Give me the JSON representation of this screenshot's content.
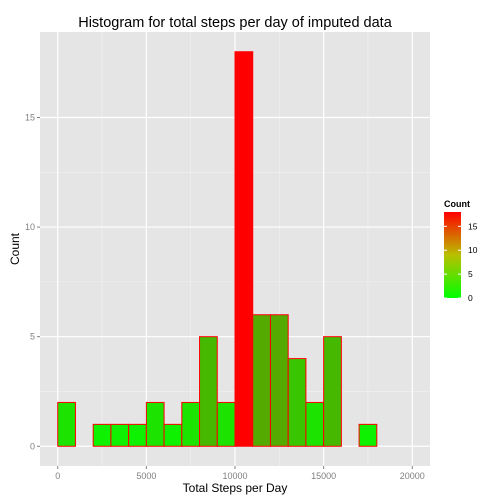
{
  "chart_data": {
    "type": "bar",
    "title": "Histogram for total steps per day of imputed data",
    "xlabel": "Total Steps per Day",
    "ylabel": "Count",
    "xlim": [
      -1000,
      21000
    ],
    "ylim": [
      -0.9,
      18.9
    ],
    "xticks": [
      "0",
      "5000",
      "10000",
      "15000",
      "20000"
    ],
    "yticks": [
      "0",
      "5",
      "10",
      "15"
    ],
    "bin_width": 1000,
    "bins": [
      {
        "x0": 0,
        "x1": 1000,
        "count": 2
      },
      {
        "x0": 1000,
        "x1": 2000,
        "count": 0
      },
      {
        "x0": 2000,
        "x1": 3000,
        "count": 1
      },
      {
        "x0": 3000,
        "x1": 4000,
        "count": 1
      },
      {
        "x0": 4000,
        "x1": 5000,
        "count": 1
      },
      {
        "x0": 5000,
        "x1": 6000,
        "count": 2
      },
      {
        "x0": 6000,
        "x1": 7000,
        "count": 1
      },
      {
        "x0": 7000,
        "x1": 8000,
        "count": 2
      },
      {
        "x0": 8000,
        "x1": 9000,
        "count": 5
      },
      {
        "x0": 9000,
        "x1": 10000,
        "count": 2
      },
      {
        "x0": 10000,
        "x1": 11000,
        "count": 18
      },
      {
        "x0": 11000,
        "x1": 12000,
        "count": 6
      },
      {
        "x0": 12000,
        "x1": 13000,
        "count": 6
      },
      {
        "x0": 13000,
        "x1": 14000,
        "count": 4
      },
      {
        "x0": 14000,
        "x1": 15000,
        "count": 2
      },
      {
        "x0": 15000,
        "x1": 16000,
        "count": 5
      },
      {
        "x0": 16000,
        "x1": 17000,
        "count": 0
      },
      {
        "x0": 17000,
        "x1": 18000,
        "count": 1
      },
      {
        "x0": 18000,
        "x1": 19000,
        "count": 0
      },
      {
        "x0": 19000,
        "x1": 20000,
        "count": 0
      }
    ],
    "fill_scale": {
      "low": "#00ff00",
      "high": "#ff0000",
      "domain": [
        0,
        18
      ]
    },
    "bar_outline_color": "#ff0000",
    "panel_background": "#e5e5e5",
    "grid": true,
    "legend": {
      "title": "Count",
      "position": "right",
      "labels": [
        "15",
        "10",
        "5",
        "0"
      ]
    }
  }
}
